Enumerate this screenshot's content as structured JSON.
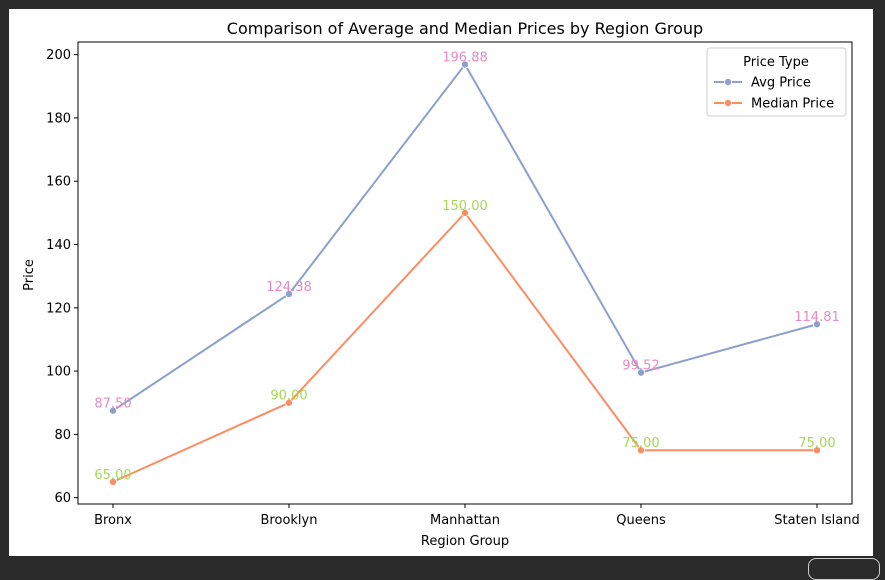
{
  "chart_data": {
    "type": "line",
    "title": "Comparison of Average and Median Prices by Region Group",
    "xlabel": "Region Group",
    "ylabel": "Price",
    "categories": [
      "Bronx",
      "Brooklyn",
      "Manhattan",
      "Queens",
      "Staten Island"
    ],
    "ylim": [
      58,
      204
    ],
    "yticks": [
      60,
      80,
      100,
      120,
      140,
      160,
      180,
      200
    ],
    "grid": false,
    "legend": {
      "title": "Price Type",
      "placement": "top-right"
    },
    "series": [
      {
        "name": "Avg Price",
        "values": [
          87.5,
          124.38,
          196.88,
          99.52,
          114.81
        ],
        "labels": [
          "87.50",
          "124.38",
          "196.88",
          "99.52",
          "114.81"
        ],
        "color": "#8da0cb",
        "label_color": "#e78ac3"
      },
      {
        "name": "Median Price",
        "values": [
          65.0,
          90.0,
          150.0,
          75.0,
          75.0
        ],
        "labels": [
          "65.00",
          "90.00",
          "150.00",
          "75.00",
          "75.00"
        ],
        "color": "#fc8d62",
        "label_color": "#a6d854"
      }
    ]
  }
}
